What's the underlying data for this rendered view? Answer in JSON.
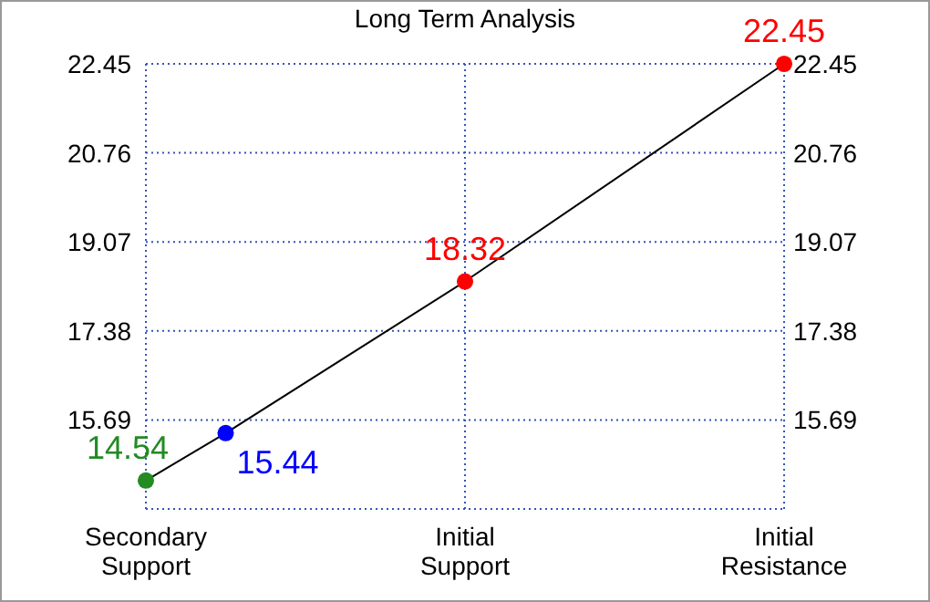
{
  "chart_data": {
    "type": "line",
    "title": "Long Term Analysis",
    "categories": [
      "Secondary\nSupport",
      null,
      null,
      null,
      "Initial\nSupport",
      null,
      null,
      null,
      "Initial\nResistance"
    ],
    "ylim": [
      14.0,
      22.45
    ],
    "yticks": [
      15.69,
      17.38,
      19.07,
      20.76,
      22.45
    ],
    "y2lim": [
      14.0,
      22.45
    ],
    "y2ticks": [
      15.69,
      17.38,
      19.07,
      20.76,
      22.45
    ],
    "grid": true,
    "series": [
      {
        "color": "#000000",
        "values": [
          14.54,
          15.44,
          null,
          null,
          18.32,
          null,
          null,
          null,
          22.45
        ],
        "marker": "none"
      },
      {
        "type": "scatter",
        "values": [
          14.54,
          15.44,
          null,
          null,
          18.32,
          null,
          null,
          null,
          22.45
        ],
        "colors": [
          "#228b22",
          "#0000ff",
          null,
          null,
          "#ff0000",
          null,
          null,
          null,
          "#ff0000"
        ],
        "value_labels": [
          "14.54",
          "15.44",
          null,
          null,
          "18.32",
          null,
          null,
          null,
          "22.45"
        ],
        "marker": "circle"
      }
    ]
  }
}
